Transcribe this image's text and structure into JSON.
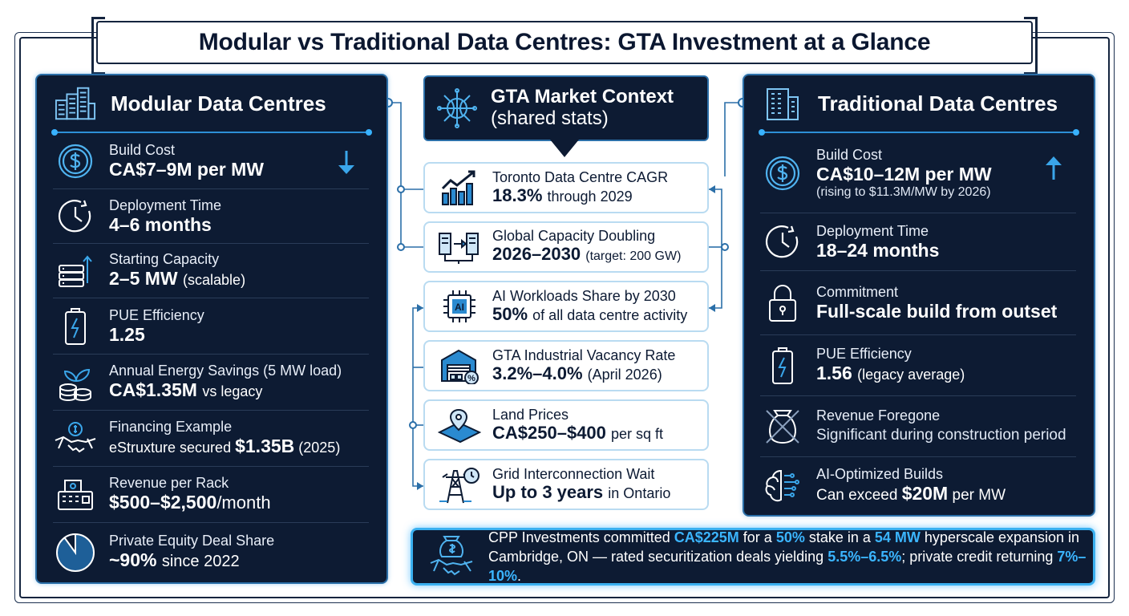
{
  "title": "Modular vs Traditional Data Centres: GTA Investment at a Glance",
  "modular": {
    "heading": "Modular Data Centres",
    "rows": [
      {
        "icon": "dollar-icon",
        "label": "Build Cost",
        "value": "CA$7–9M per MW",
        "indicator": "down-arrow-icon"
      },
      {
        "icon": "clock-icon",
        "label": "Deployment Time",
        "value": "4–6 months"
      },
      {
        "icon": "server-stack-icon",
        "label": "Starting Capacity",
        "value": "2–5 MW",
        "value_small": "(scalable)"
      },
      {
        "icon": "battery-icon",
        "label": "PUE Efficiency",
        "value": "1.25"
      },
      {
        "icon": "coins-leaf-icon",
        "label": "Annual Energy Savings (5 MW load)",
        "value": "CA$1.35M",
        "value_small": "vs legacy"
      },
      {
        "icon": "handshake-icon",
        "label": "Financing Example",
        "value_prefix": "eStruxture secured",
        "value": "$1.35B",
        "value_small": "(2025)"
      },
      {
        "icon": "cash-register-icon",
        "label": "Revenue per Rack",
        "value": "$500–$2,500",
        "value_small": "/month"
      },
      {
        "icon": "pie-chart-icon",
        "label": "Private Equity Deal Share",
        "value": "~90%",
        "value_small": "since 2022",
        "share_pct": 90
      }
    ]
  },
  "context": {
    "heading_line1": "GTA Market Context",
    "heading_line2": "(shared stats)",
    "cards": [
      {
        "icon": "growth-chart-icon",
        "label": "Toronto Data Centre CAGR",
        "value": "18.3%",
        "value_small": "through 2029"
      },
      {
        "icon": "server-transfer-icon",
        "label": "Global Capacity Doubling",
        "value": "2026–2030",
        "value_small": "(target: 200 GW)"
      },
      {
        "icon": "ai-chip-icon",
        "label": "AI Workloads Share by 2030",
        "value": "50%",
        "value_small": "of all data centre activity"
      },
      {
        "icon": "warehouse-icon",
        "label": "GTA Industrial Vacancy Rate",
        "value": "3.2%–4.0%",
        "value_small": "(April 2026)"
      },
      {
        "icon": "land-pin-icon",
        "label": "Land Prices",
        "value": "CA$250–$400",
        "value_small": "per sq ft"
      },
      {
        "icon": "power-tower-icon",
        "label": "Grid Interconnection Wait",
        "value": "Up to 3 years",
        "value_small": "in Ontario"
      }
    ]
  },
  "traditional": {
    "heading": "Traditional Data Centres",
    "rows": [
      {
        "icon": "dollar-icon",
        "label": "Build Cost",
        "value": "CA$10–12M per MW",
        "sub": "(rising to $11.3M/MW by 2026)",
        "indicator": "up-arrow-icon"
      },
      {
        "icon": "clock-icon",
        "label": "Deployment Time",
        "value": "18–24 months"
      },
      {
        "icon": "padlock-icon",
        "label": "Commitment",
        "value": "Full-scale build from outset"
      },
      {
        "icon": "battery-icon",
        "label": "PUE Efficiency",
        "value": "1.56",
        "value_small": "(legacy average)"
      },
      {
        "icon": "crossed-moneybag-icon",
        "label": "Revenue Foregone",
        "sub": "Significant during construction period"
      },
      {
        "icon": "ai-brain-icon",
        "label": "AI-Optimized Builds",
        "value_prefix": "Can exceed",
        "value": "$20M",
        "value_small": "per MW"
      }
    ]
  },
  "bottom_note": {
    "icon": "investment-handshake-icon",
    "parts": [
      {
        "t": "CPP Investments committed ",
        "hl": false
      },
      {
        "t": "CA$225M",
        "hl": true
      },
      {
        "t": " for a ",
        "hl": false
      },
      {
        "t": "50%",
        "hl": true
      },
      {
        "t": " stake in a ",
        "hl": false
      },
      {
        "t": "54 MW",
        "hl": true
      },
      {
        "t": " hyperscale expansion in Cambridge, ON — rated securitization deals yielding ",
        "hl": false
      },
      {
        "t": "5.5%–6.5%",
        "hl": true
      },
      {
        "t": "; private credit returning ",
        "hl": false
      },
      {
        "t": "7%–10%",
        "hl": true
      },
      {
        "t": ".",
        "hl": false
      }
    ]
  },
  "colors": {
    "navy": "#0d1b33",
    "accent": "#3bb5ff",
    "border": "#2b6fa8"
  }
}
